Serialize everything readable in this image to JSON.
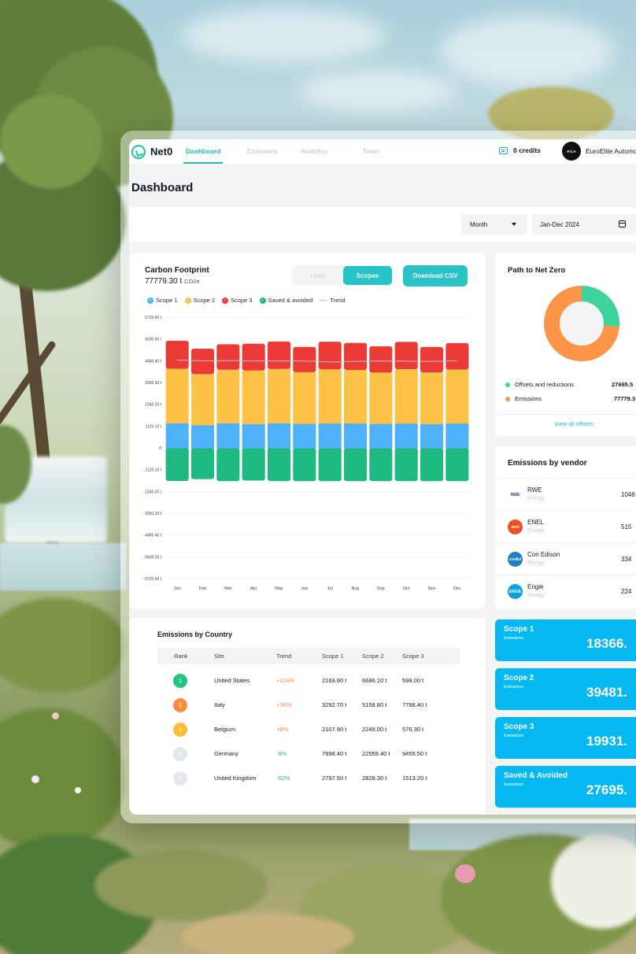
{
  "app": {
    "logo_text": "Net0",
    "nav": [
      "Dashboard",
      "Emissions",
      "Analytics",
      "Team"
    ],
    "credits": "0 credits",
    "company": "EuroElite Automo",
    "company_avatar": "P.S.A"
  },
  "page": {
    "title": "Dashboard",
    "period_select": "Month",
    "date_range": "Jan-Dec 2024"
  },
  "carbon_footprint": {
    "title": "Carbon Footprint",
    "total_value": "77779.30 t",
    "total_unit": "CO2e",
    "toggle": [
      "Units",
      "Scopes"
    ],
    "download_label": "Download CSV",
    "legend": [
      "Scope 1",
      "Scope 2",
      "Scope 3",
      "Saved & avoided",
      "Trend"
    ]
  },
  "chart_data": {
    "type": "bar",
    "stacked": true,
    "categories": [
      "Jan",
      "Feb",
      "Mar",
      "Apr",
      "May",
      "Jun",
      "Jul",
      "Aug",
      "Sep",
      "Oct",
      "Nov",
      "Dec"
    ],
    "y_tick_labels": [
      "6720.60 t",
      "5600.50 t",
      "4480.40 t",
      "3360.30 t",
      "2240.20 t",
      "1120.10 t",
      "0",
      "- 1120.10 t",
      "- 2240.20 t",
      "- 3360.30 t",
      "- 4480.40 t",
      "- 5600.50 t",
      "- 6720.60 t"
    ],
    "ylim": [
      -6720.6,
      6720.6
    ],
    "grid": true,
    "legend_position": "top-left",
    "series": [
      {
        "name": "Saved & avoided",
        "color": "#1eb980",
        "values": [
          -1700,
          -1610,
          -1710,
          -1680,
          -1710,
          -1710,
          -1710,
          -1710,
          -1710,
          -1710,
          -1710,
          -1710
        ]
      },
      {
        "name": "Scope 1",
        "color": "#4fb2f8",
        "values": [
          1280,
          1180,
          1280,
          1240,
          1280,
          1250,
          1270,
          1270,
          1250,
          1270,
          1240,
          1270
        ]
      },
      {
        "name": "Scope 2",
        "color": "#fdc246",
        "values": [
          2790,
          2610,
          2740,
          2740,
          2780,
          2640,
          2770,
          2740,
          2620,
          2780,
          2640,
          2760
        ]
      },
      {
        "name": "Scope 3",
        "color": "#ec3b36",
        "values": [
          1440,
          1310,
          1310,
          1380,
          1410,
          1300,
          1420,
          1390,
          1360,
          1400,
          1310,
          1360
        ]
      }
    ],
    "trend": {
      "name": "Trend",
      "color": "#b9c0c8",
      "values": [
        4520,
        4480,
        4490,
        4470,
        4470,
        4470,
        4420,
        4450,
        4470,
        4460,
        4450,
        4480
      ]
    }
  },
  "path_to_net_zero": {
    "title": "Path to Net Zero",
    "items": [
      {
        "label": "Offsets and reductions",
        "value": "27695.5",
        "share": 0.263,
        "color": "#3cd49c"
      },
      {
        "label": "Emissions",
        "value": "77779.3",
        "share": 0.737,
        "color": "#fb9447"
      }
    ],
    "link": "View all offsets"
  },
  "vendors": {
    "title": "Emissions by vendor",
    "items": [
      {
        "name": "RWE",
        "category": "Energy",
        "value": "1046",
        "logo": "RWE",
        "color": "#ffffff",
        "text_color": "#1d3f8f"
      },
      {
        "name": "ENEL",
        "category": "Energy",
        "value": "515",
        "logo": "enel",
        "color": "#f04e23",
        "text_color": "#ffffff"
      },
      {
        "name": "Con Edison",
        "category": "Energy",
        "value": "334",
        "logo": "conEd",
        "color": "#1c7fc2",
        "text_color": "#ffffff"
      },
      {
        "name": "Engie",
        "category": "Energy",
        "value": "224",
        "logo": "ENGIE",
        "color": "#0aa3e0",
        "text_color": "#ffffff"
      }
    ]
  },
  "country_table": {
    "title": "Emissions by Country",
    "headers": [
      "Rank",
      "Site",
      "Trend",
      "Scope 1",
      "Scope 2",
      "Scope 3"
    ],
    "rows": [
      {
        "rank": "1",
        "site": "United States",
        "trend": "+114%",
        "scope1": "2169.90 t",
        "scope2": "6686.10 t",
        "scope3": "598.00 t",
        "rank_color": "#23c587",
        "trend_color": "#f7854b"
      },
      {
        "rank": "2",
        "site": "Italy",
        "trend": "+36%",
        "scope1": "3292.70 t",
        "scope2": "5158.80 t",
        "scope3": "7788.40 t",
        "rank_color": "#fb8c44",
        "trend_color": "#f7854b"
      },
      {
        "rank": "3",
        "site": "Belgium",
        "trend": "+8%",
        "scope1": "2107.90 t",
        "scope2": "2249.00 t",
        "scope3": "576.30 t",
        "rank_color": "#fdbd34",
        "trend_color": "#f7854b"
      },
      {
        "rank": "4",
        "site": "Germany",
        "trend": "-9%",
        "scope1": "7998.40 t",
        "scope2": "22559.40 t",
        "scope3": "9455.50 t",
        "rank_color": "#e4e6ee",
        "trend_color": "#2fb77a"
      },
      {
        "rank": "5",
        "site": "United Kingdom",
        "trend": "-52%",
        "scope1": "2797.50 t",
        "scope2": "2828.30 t",
        "scope3": "1513.20 t",
        "rank_color": "#e4e6ee",
        "trend_color": "#2fb77a"
      }
    ]
  },
  "scope_tiles": [
    {
      "name": "Scope 1",
      "sub": "Emissions",
      "value": "18366."
    },
    {
      "name": "Scope 2",
      "sub": "Emissions",
      "value": "39481."
    },
    {
      "name": "Scope 3",
      "sub": "Emissions",
      "value": "19931."
    },
    {
      "name": "Saved & Avoided",
      "sub": "Emissions",
      "value": "27695."
    }
  ],
  "colors": {
    "accent": "#27c3c6",
    "tile": "#04b9f2",
    "scope1": "#4fb2f8",
    "scope2": "#fdc246",
    "scope3": "#ec3b36",
    "saved": "#1eb980"
  }
}
